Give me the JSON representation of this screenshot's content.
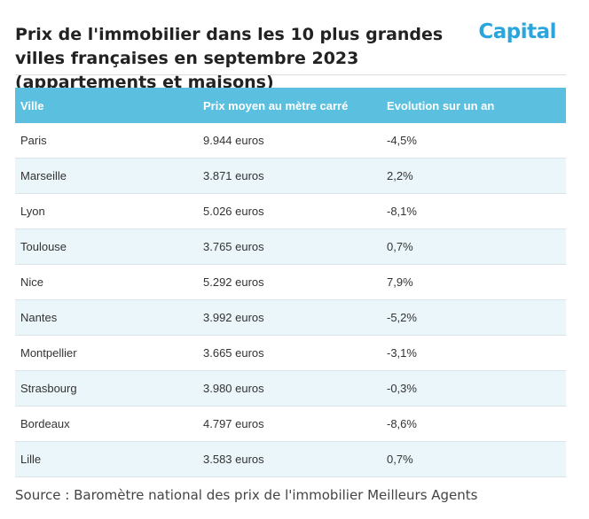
{
  "title": "Prix de l'immobilier dans les 10 plus grandes villes françaises en septembre 2023 (appartements et maisons)",
  "logo_text": "Capital",
  "source": "Source : Baromètre national des prix de l'immobilier Meilleurs Agents",
  "colors": {
    "header_bg": "#5bc0df",
    "alt_row_bg": "#ebf6fa",
    "logo": "#2aa6dc"
  },
  "chart_data": {
    "type": "table",
    "title": "Prix de l'immobilier dans les 10 plus grandes villes françaises en septembre 2023 (appartements et maisons)",
    "columns": [
      "Ville",
      "Prix moyen au mètre carré",
      "Evolution sur un an"
    ],
    "rows": [
      [
        "Paris",
        "9.944 euros",
        "-4,5%"
      ],
      [
        "Marseille",
        "3.871 euros",
        "2,2%"
      ],
      [
        "Lyon",
        "5.026 euros",
        "-8,1%"
      ],
      [
        "Toulouse",
        "3.765 euros",
        "0,7%"
      ],
      [
        "Nice",
        "5.292 euros",
        "7,9%"
      ],
      [
        "Nantes",
        "3.992 euros",
        "-5,2%"
      ],
      [
        "Montpellier",
        "3.665 euros",
        "-3,1%"
      ],
      [
        "Strasbourg",
        "3.980 euros",
        "-0,3%"
      ],
      [
        "Bordeaux",
        "4.797 euros",
        "-8,6%"
      ],
      [
        "Lille",
        "3.583 euros",
        "0,7%"
      ]
    ]
  }
}
